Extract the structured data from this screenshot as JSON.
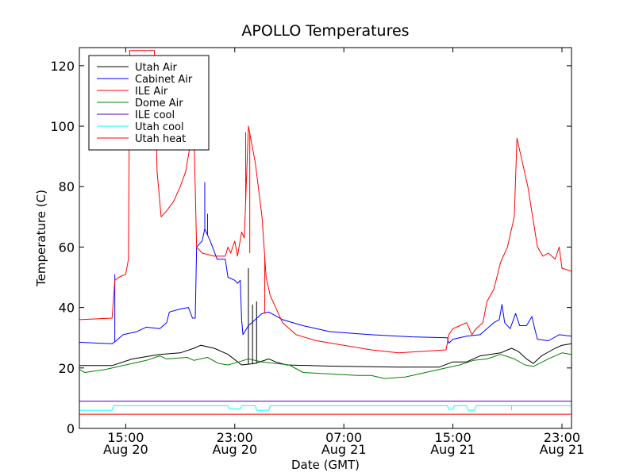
{
  "chart_data": {
    "type": "line",
    "title": "APOLLO Temperatures",
    "xlabel": "Date (GMT)",
    "ylabel": "Temperature (C)",
    "xlim": [
      11.6,
      47.7
    ],
    "ylim": [
      0,
      126
    ],
    "legend_position": "top-left",
    "yticks": [
      0,
      20,
      40,
      60,
      80,
      100,
      120
    ],
    "xticks": [
      {
        "value": 15,
        "line1": "15:00",
        "line2": "Aug 20"
      },
      {
        "value": 23,
        "line1": "23:00",
        "line2": "Aug 20"
      },
      {
        "value": 31,
        "line1": "07:00",
        "line2": "Aug 21"
      },
      {
        "value": 39,
        "line1": "15:00",
        "line2": "Aug 21"
      },
      {
        "value": 47,
        "line1": "23:00",
        "line2": "Aug 21"
      }
    ],
    "x_units": "hours since Aug 20 00:00 GMT",
    "series": [
      {
        "name": "Utah Air",
        "color": "#000000",
        "points": [
          [
            11.6,
            20.8
          ],
          [
            14.0,
            20.8
          ],
          [
            15.5,
            23
          ],
          [
            17.5,
            24.5
          ],
          [
            19.0,
            25
          ],
          [
            20.0,
            26.5
          ],
          [
            20.5,
            27.5
          ],
          [
            21.5,
            26.5
          ],
          [
            22.5,
            24.5
          ],
          [
            23.5,
            21
          ],
          [
            24.5,
            21.5
          ],
          [
            25.5,
            23
          ],
          [
            26.0,
            22
          ],
          [
            26.8,
            21
          ],
          [
            30,
            20.6
          ],
          [
            35,
            20.3
          ],
          [
            38,
            20.3
          ],
          [
            39,
            22
          ],
          [
            40,
            22
          ],
          [
            41,
            24
          ],
          [
            42.5,
            25
          ],
          [
            43.3,
            26.5
          ],
          [
            43.8,
            25.5
          ],
          [
            44.4,
            23
          ],
          [
            44.9,
            21.5
          ],
          [
            45.5,
            24
          ],
          [
            46.5,
            26.5
          ],
          [
            47.0,
            27.5
          ],
          [
            47.7,
            28
          ]
        ],
        "spikes": [
          [
            24.0,
            53
          ],
          [
            24.3,
            41
          ],
          [
            24.6,
            42
          ]
        ]
      },
      {
        "name": "Cabinet Air",
        "color": "#0000ff",
        "points": [
          [
            11.6,
            28.5
          ],
          [
            14.0,
            28
          ],
          [
            14.3,
            29
          ],
          [
            14.8,
            31
          ],
          [
            15.8,
            32
          ],
          [
            16.5,
            33.5
          ],
          [
            17.5,
            33
          ],
          [
            18.0,
            35
          ],
          [
            18.2,
            38.5
          ],
          [
            19.0,
            39.5
          ],
          [
            19.6,
            40
          ],
          [
            19.9,
            36.5
          ],
          [
            20.1,
            36.5
          ],
          [
            20.2,
            60
          ],
          [
            20.6,
            62
          ],
          [
            20.8,
            66
          ],
          [
            21.2,
            62
          ],
          [
            21.7,
            56
          ],
          [
            22.3,
            56
          ],
          [
            22.5,
            50
          ],
          [
            23.0,
            49
          ],
          [
            23.2,
            48
          ],
          [
            23.4,
            49
          ],
          [
            23.5,
            36
          ],
          [
            23.6,
            31
          ],
          [
            24.0,
            34
          ],
          [
            24.5,
            36
          ],
          [
            25.0,
            38
          ],
          [
            25.5,
            38.5
          ],
          [
            26.5,
            36
          ],
          [
            28,
            34
          ],
          [
            30,
            32
          ],
          [
            33,
            31
          ],
          [
            36,
            30.3
          ],
          [
            38.6,
            30
          ],
          [
            38.7,
            28.2
          ],
          [
            39.0,
            29.5
          ],
          [
            40.0,
            30.5
          ],
          [
            41.0,
            31
          ],
          [
            41.5,
            33
          ],
          [
            42.0,
            35
          ],
          [
            42.4,
            36
          ],
          [
            42.6,
            41
          ],
          [
            42.8,
            35
          ],
          [
            43.2,
            33
          ],
          [
            43.6,
            38
          ],
          [
            43.9,
            34
          ],
          [
            44.4,
            34
          ],
          [
            44.8,
            37
          ],
          [
            45.0,
            33
          ],
          [
            45.2,
            29.5
          ],
          [
            46,
            29
          ],
          [
            46.8,
            31
          ],
          [
            47.7,
            30.5
          ]
        ],
        "spikes": [
          [
            14.2,
            51
          ],
          [
            20.8,
            81.5
          ],
          [
            21.0,
            71
          ]
        ]
      },
      {
        "name": "ILE Air",
        "color": "#ff0000",
        "points": [
          [
            11.6,
            36
          ],
          [
            14.0,
            36.5
          ],
          [
            14.2,
            49
          ],
          [
            14.5,
            50
          ],
          [
            15.0,
            51
          ],
          [
            15.2,
            56
          ],
          [
            15.3,
            125
          ],
          [
            17.1,
            125
          ],
          [
            17.3,
            85
          ],
          [
            17.6,
            70
          ],
          [
            18.0,
            72
          ],
          [
            18.5,
            75
          ],
          [
            19.0,
            80
          ],
          [
            19.4,
            85
          ],
          [
            19.7,
            93
          ],
          [
            20.0,
            98
          ],
          [
            20.2,
            60
          ],
          [
            20.6,
            58
          ],
          [
            21.5,
            57
          ],
          [
            22.3,
            57
          ],
          [
            22.5,
            60
          ],
          [
            22.7,
            58
          ],
          [
            23.0,
            62
          ],
          [
            23.2,
            57
          ],
          [
            23.5,
            65
          ],
          [
            23.7,
            63
          ],
          [
            24.0,
            100
          ],
          [
            24.5,
            88
          ],
          [
            25.0,
            70
          ],
          [
            25.3,
            50
          ],
          [
            25.6,
            44
          ],
          [
            26.0,
            40
          ],
          [
            26.5,
            35
          ],
          [
            27.5,
            31
          ],
          [
            29,
            29
          ],
          [
            31,
            27.5
          ],
          [
            33,
            26
          ],
          [
            35,
            25
          ],
          [
            36.8,
            25.5
          ],
          [
            38.5,
            26
          ],
          [
            38.7,
            31
          ],
          [
            39.0,
            33
          ],
          [
            39.5,
            34
          ],
          [
            40.0,
            35
          ],
          [
            40.4,
            31
          ],
          [
            40.7,
            33
          ],
          [
            41.2,
            35
          ],
          [
            41.5,
            42
          ],
          [
            42.0,
            46
          ],
          [
            42.5,
            55
          ],
          [
            43.0,
            60
          ],
          [
            43.5,
            70
          ],
          [
            43.7,
            96
          ],
          [
            44.5,
            80
          ],
          [
            45.2,
            60
          ],
          [
            45.6,
            57
          ],
          [
            46.0,
            58
          ],
          [
            46.5,
            56
          ],
          [
            46.8,
            60
          ],
          [
            47.0,
            53
          ],
          [
            47.7,
            52
          ]
        ],
        "spikes": [
          [
            23.8,
            98
          ],
          [
            24.1,
            58
          ],
          [
            25.2,
            38
          ]
        ]
      },
      {
        "name": "Dome Air",
        "color": "#008000",
        "points": [
          [
            11.6,
            19.5
          ],
          [
            12.0,
            18.5
          ],
          [
            13.5,
            19.5
          ],
          [
            15.0,
            21
          ],
          [
            16.5,
            22.5
          ],
          [
            17.5,
            24
          ],
          [
            18.0,
            23
          ],
          [
            19.5,
            23.5
          ],
          [
            20.0,
            22.5
          ],
          [
            21.0,
            23.5
          ],
          [
            21.8,
            21.5
          ],
          [
            22.5,
            21
          ],
          [
            23.3,
            22
          ],
          [
            24.0,
            23
          ],
          [
            25.0,
            22
          ],
          [
            26.0,
            21.5
          ],
          [
            27.0,
            21
          ],
          [
            28.0,
            18.5
          ],
          [
            30,
            18
          ],
          [
            32,
            17.5
          ],
          [
            33,
            17.5
          ],
          [
            34,
            16.5
          ],
          [
            35.5,
            17
          ],
          [
            37,
            18.5
          ],
          [
            38.5,
            20
          ],
          [
            39.5,
            21
          ],
          [
            40.5,
            22.5
          ],
          [
            41.5,
            23
          ],
          [
            42.5,
            24.5
          ],
          [
            43.5,
            23
          ],
          [
            44.3,
            21
          ],
          [
            44.9,
            20.5
          ],
          [
            46,
            23
          ],
          [
            47.0,
            25
          ],
          [
            47.7,
            24.5
          ]
        ],
        "spikes": []
      },
      {
        "name": "ILE cool",
        "color": "#5000a0",
        "points": [
          [
            11.6,
            9
          ],
          [
            47.7,
            9
          ]
        ],
        "spikes": []
      },
      {
        "name": "Utah cool",
        "color": "#00ffff",
        "points": [
          [
            11.6,
            6
          ],
          [
            14.0,
            6
          ],
          [
            14.1,
            7.5
          ],
          [
            22.5,
            7.5
          ],
          [
            22.6,
            6.5
          ],
          [
            23.4,
            6.5
          ],
          [
            23.5,
            7.5
          ],
          [
            24.5,
            7.5
          ],
          [
            24.6,
            6
          ],
          [
            25.5,
            6
          ],
          [
            25.6,
            7.5
          ],
          [
            38.6,
            7.5
          ],
          [
            38.7,
            6.3
          ],
          [
            39.0,
            6.3
          ],
          [
            39.1,
            7.5
          ],
          [
            40.0,
            7.5
          ],
          [
            40.1,
            6
          ],
          [
            40.6,
            6
          ],
          [
            40.7,
            7.5
          ],
          [
            47.7,
            7.5
          ]
        ],
        "spikes": [
          [
            24.8,
            6
          ],
          [
            25.0,
            6
          ],
          [
            25.2,
            6
          ],
          [
            43.3,
            6
          ]
        ]
      },
      {
        "name": "Utah heat",
        "color": "#ff0000",
        "points": [
          [
            11.6,
            4.7
          ],
          [
            47.7,
            4.7
          ]
        ],
        "spikes": []
      }
    ]
  }
}
